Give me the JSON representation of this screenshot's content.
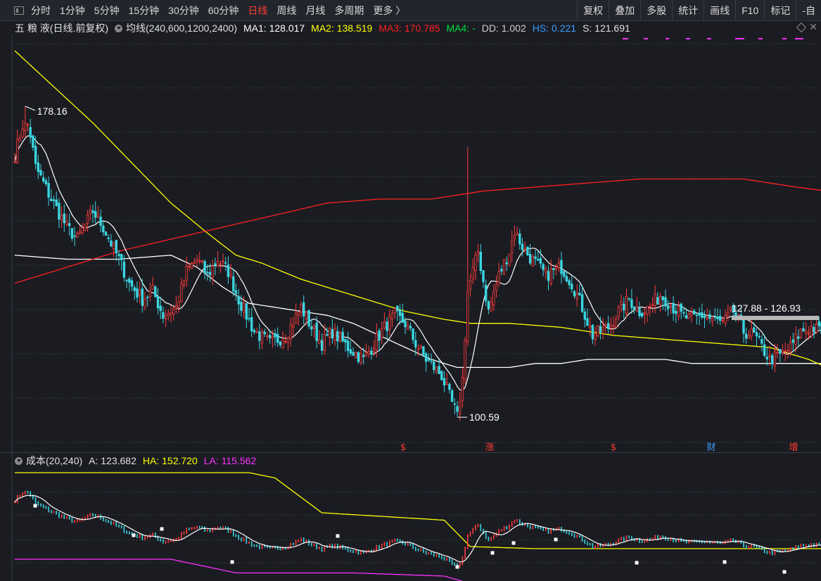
{
  "toolbar": {
    "periods": [
      "分时",
      "1分钟",
      "5分钟",
      "15分钟",
      "30分钟",
      "60分钟",
      "日线",
      "周线",
      "月线",
      "多周期",
      "更多 〉"
    ],
    "active_period": "日线",
    "tools": [
      "复权",
      "叠加",
      "多股",
      "统计",
      "画线",
      "F10",
      "标记",
      "-自"
    ]
  },
  "header": {
    "stock": "五 粮 液(日线.前复权)",
    "ma_label": "均线(240,600,1200,2400)",
    "ma1": "MA1: 128.017",
    "ma2": "MA2: 138.519",
    "ma3": "MA3: 170.785",
    "ma4": "MA4: -",
    "dd": "DD: 1.002",
    "hs": "HS: 0.221",
    "s": "S: 121.691"
  },
  "sub_header": {
    "label": "成本(20,240)",
    "a": "A: 123.682",
    "ha": "HA: 152.720",
    "la": "LA: 115.562"
  },
  "chart_data": {
    "type": "candlestick",
    "stock": "五粮液",
    "period": "日线",
    "adjust": "前复权",
    "annotations": {
      "high": "178.16",
      "low": "100.59",
      "range": "127.88 - 126.93"
    },
    "event_markers": [
      {
        "label": "$",
        "color": "#ff3b30"
      },
      {
        "label": "涨",
        "color": "#ff3b30"
      },
      {
        "label": "$",
        "color": "#ff3b30"
      },
      {
        "label": "财",
        "color": "#3aa0ff"
      },
      {
        "label": "增",
        "color": "#ff3b30"
      }
    ],
    "price_anchors": [
      [
        0,
        166
      ],
      [
        4,
        176
      ],
      [
        6,
        171
      ],
      [
        8,
        163
      ],
      [
        14,
        155
      ],
      [
        20,
        148
      ],
      [
        24,
        145
      ],
      [
        30,
        152
      ],
      [
        34,
        148
      ],
      [
        40,
        140
      ],
      [
        44,
        134
      ],
      [
        49,
        130
      ],
      [
        53,
        132
      ],
      [
        57,
        126
      ],
      [
        62,
        128
      ],
      [
        66,
        137
      ],
      [
        70,
        140
      ],
      [
        74,
        136
      ],
      [
        78,
        140
      ],
      [
        82,
        137
      ],
      [
        86,
        130
      ],
      [
        92,
        122
      ],
      [
        98,
        119
      ],
      [
        104,
        121
      ],
      [
        110,
        128
      ],
      [
        114,
        123
      ],
      [
        118,
        119
      ],
      [
        122,
        122
      ],
      [
        128,
        118
      ],
      [
        134,
        115
      ],
      [
        138,
        119
      ],
      [
        142,
        123
      ],
      [
        146,
        126
      ],
      [
        150,
        124
      ],
      [
        154,
        119
      ],
      [
        158,
        115
      ],
      [
        164,
        111
      ],
      [
        168,
        104
      ],
      [
        170,
        101
      ],
      [
        172,
        110
      ],
      [
        174,
        132
      ],
      [
        178,
        142
      ],
      [
        182,
        127
      ],
      [
        186,
        136
      ],
      [
        190,
        142
      ],
      [
        192,
        147
      ],
      [
        196,
        142
      ],
      [
        200,
        139
      ],
      [
        204,
        136
      ],
      [
        210,
        138
      ],
      [
        214,
        134
      ],
      [
        218,
        128
      ],
      [
        222,
        121
      ],
      [
        228,
        123
      ],
      [
        232,
        127
      ],
      [
        236,
        130
      ],
      [
        240,
        127
      ],
      [
        244,
        128
      ],
      [
        248,
        131
      ],
      [
        250,
        130
      ],
      [
        253,
        128
      ],
      [
        256,
        126
      ],
      [
        260,
        125
      ],
      [
        264,
        126
      ],
      [
        268,
        125
      ],
      [
        272,
        124
      ],
      [
        276,
        127
      ],
      [
        280,
        122
      ],
      [
        284,
        121
      ],
      [
        290,
        115
      ],
      [
        294,
        116
      ],
      [
        298,
        118
      ],
      [
        302,
        122
      ],
      [
        306,
        123
      ],
      [
        310,
        122
      ],
      [
        312,
        122
      ]
    ],
    "ma_series": [
      {
        "name": "MA1",
        "color": "#ffffff",
        "anchors": [
          [
            0,
            141
          ],
          [
            20,
            140
          ],
          [
            40,
            140
          ],
          [
            60,
            141
          ],
          [
            70,
            138
          ],
          [
            80,
            133
          ],
          [
            90,
            129
          ],
          [
            100,
            128
          ],
          [
            110,
            127
          ],
          [
            120,
            126
          ],
          [
            130,
            124
          ],
          [
            140,
            121
          ],
          [
            150,
            118
          ],
          [
            160,
            115
          ],
          [
            170,
            113
          ],
          [
            180,
            113
          ],
          [
            190,
            113
          ],
          [
            200,
            114
          ],
          [
            210,
            114
          ],
          [
            220,
            115
          ],
          [
            230,
            115
          ],
          [
            240,
            115
          ],
          [
            250,
            115
          ],
          [
            260,
            114
          ],
          [
            270,
            114
          ],
          [
            280,
            114
          ],
          [
            290,
            114
          ],
          [
            300,
            114
          ],
          [
            312,
            114
          ]
        ]
      },
      {
        "name": "MA2",
        "color": "#ffff00",
        "anchors": [
          [
            0,
            192
          ],
          [
            15,
            183
          ],
          [
            30,
            174
          ],
          [
            45,
            164
          ],
          [
            60,
            154
          ],
          [
            75,
            146
          ],
          [
            85,
            141
          ],
          [
            95,
            139
          ],
          [
            110,
            135
          ],
          [
            130,
            131
          ],
          [
            150,
            127
          ],
          [
            165,
            125
          ],
          [
            175,
            124
          ],
          [
            190,
            124
          ],
          [
            210,
            123
          ],
          [
            230,
            121
          ],
          [
            250,
            120
          ],
          [
            270,
            119
          ],
          [
            290,
            118
          ],
          [
            305,
            115
          ],
          [
            312,
            113
          ]
        ]
      },
      {
        "name": "MA3",
        "color": "#ff2020",
        "anchors": [
          [
            0,
            134
          ],
          [
            20,
            138
          ],
          [
            40,
            142
          ],
          [
            60,
            145
          ],
          [
            80,
            148
          ],
          [
            100,
            151
          ],
          [
            120,
            154
          ],
          [
            140,
            155
          ],
          [
            160,
            155
          ],
          [
            180,
            157
          ],
          [
            200,
            158
          ],
          [
            220,
            159
          ],
          [
            240,
            160
          ],
          [
            260,
            160
          ],
          [
            280,
            160
          ],
          [
            300,
            158
          ],
          [
            312,
            157
          ]
        ]
      }
    ],
    "sub_chart": {
      "type": "cost_distribution",
      "series": [
        {
          "name": "A",
          "color": "#ffffff"
        },
        {
          "name": "HA",
          "color": "#ffff00",
          "anchors": [
            [
              0,
              1.0
            ],
            [
              90,
              1.0
            ],
            [
              100,
              0.95
            ],
            [
              118,
              0.62
            ],
            [
              165,
              0.55
            ],
            [
              175,
              0.3
            ],
            [
              200,
              0.28
            ],
            [
              312,
              0.28
            ]
          ]
        },
        {
          "name": "LA",
          "color": "#ff30ff",
          "anchors": [
            [
              0,
              0.18
            ],
            [
              60,
              0.18
            ],
            [
              85,
              0.05
            ],
            [
              130,
              0.05
            ],
            [
              165,
              0.02
            ],
            [
              175,
              -0.05
            ],
            [
              312,
              -0.05
            ]
          ]
        }
      ]
    }
  }
}
